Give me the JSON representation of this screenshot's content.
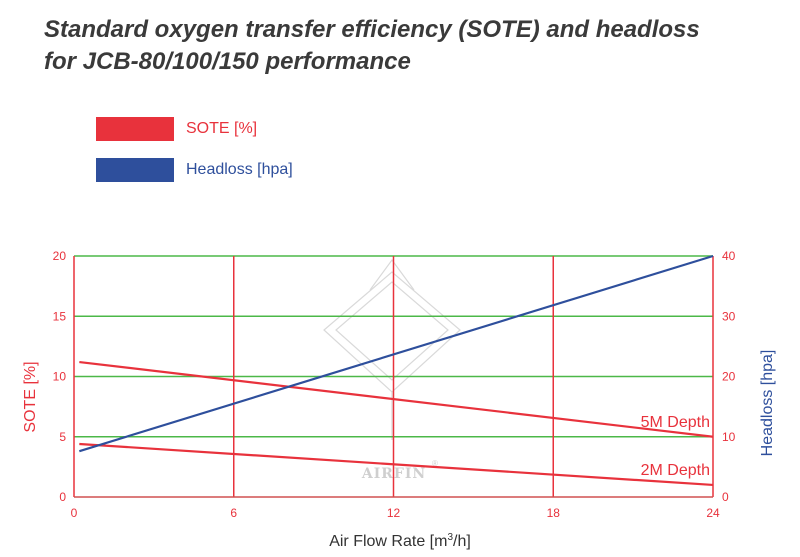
{
  "title_line1": "Standard oxygen transfer efficiency (SOTE) and headloss",
  "title_line2": "for JCB-80/100/150 performance",
  "legend": [
    {
      "label": "SOTE [%]",
      "color": "#e8323c"
    },
    {
      "label": "Headloss [hpa]",
      "color": "#2e4f9c"
    }
  ],
  "watermark": {
    "text": "AIRFIN",
    "mark": "®"
  },
  "colors": {
    "sote": "#e8323c",
    "headloss": "#2e4f9c",
    "grid_h": "#4cb848",
    "grid_v": "#e8323c"
  },
  "chart_data": {
    "type": "line",
    "xlabel": "Air Flow Rate [m³/h]",
    "xlabel_base": "Air Flow Rate [m",
    "xlabel_sup": "3",
    "xlabel_end": "/h]",
    "ylabel_left": "SOTE [%]",
    "ylabel_right": "Headloss [hpa]",
    "xlim": [
      0,
      24
    ],
    "ylim_left": [
      0,
      20
    ],
    "ylim_right": [
      0,
      40
    ],
    "x_ticks": [
      "0",
      "6",
      "12",
      "18",
      "24"
    ],
    "y_left_ticks": [
      "0",
      "5",
      "10",
      "15",
      "20"
    ],
    "y_right_ticks": [
      "0",
      "10",
      "20",
      "30",
      "40"
    ],
    "grid": true,
    "series": [
      {
        "name": "5M Depth",
        "axis": "left",
        "color": "#e8323c",
        "x": [
          0.2,
          24
        ],
        "y": [
          11.2,
          5.0
        ]
      },
      {
        "name": "2M Depth",
        "axis": "left",
        "color": "#e8323c",
        "x": [
          0.2,
          24
        ],
        "y": [
          4.4,
          1.0
        ]
      },
      {
        "name": "Headloss [hpa]",
        "axis": "right",
        "color": "#2e4f9c",
        "x": [
          0.2,
          24
        ],
        "y": [
          7.6,
          40
        ]
      }
    ]
  }
}
